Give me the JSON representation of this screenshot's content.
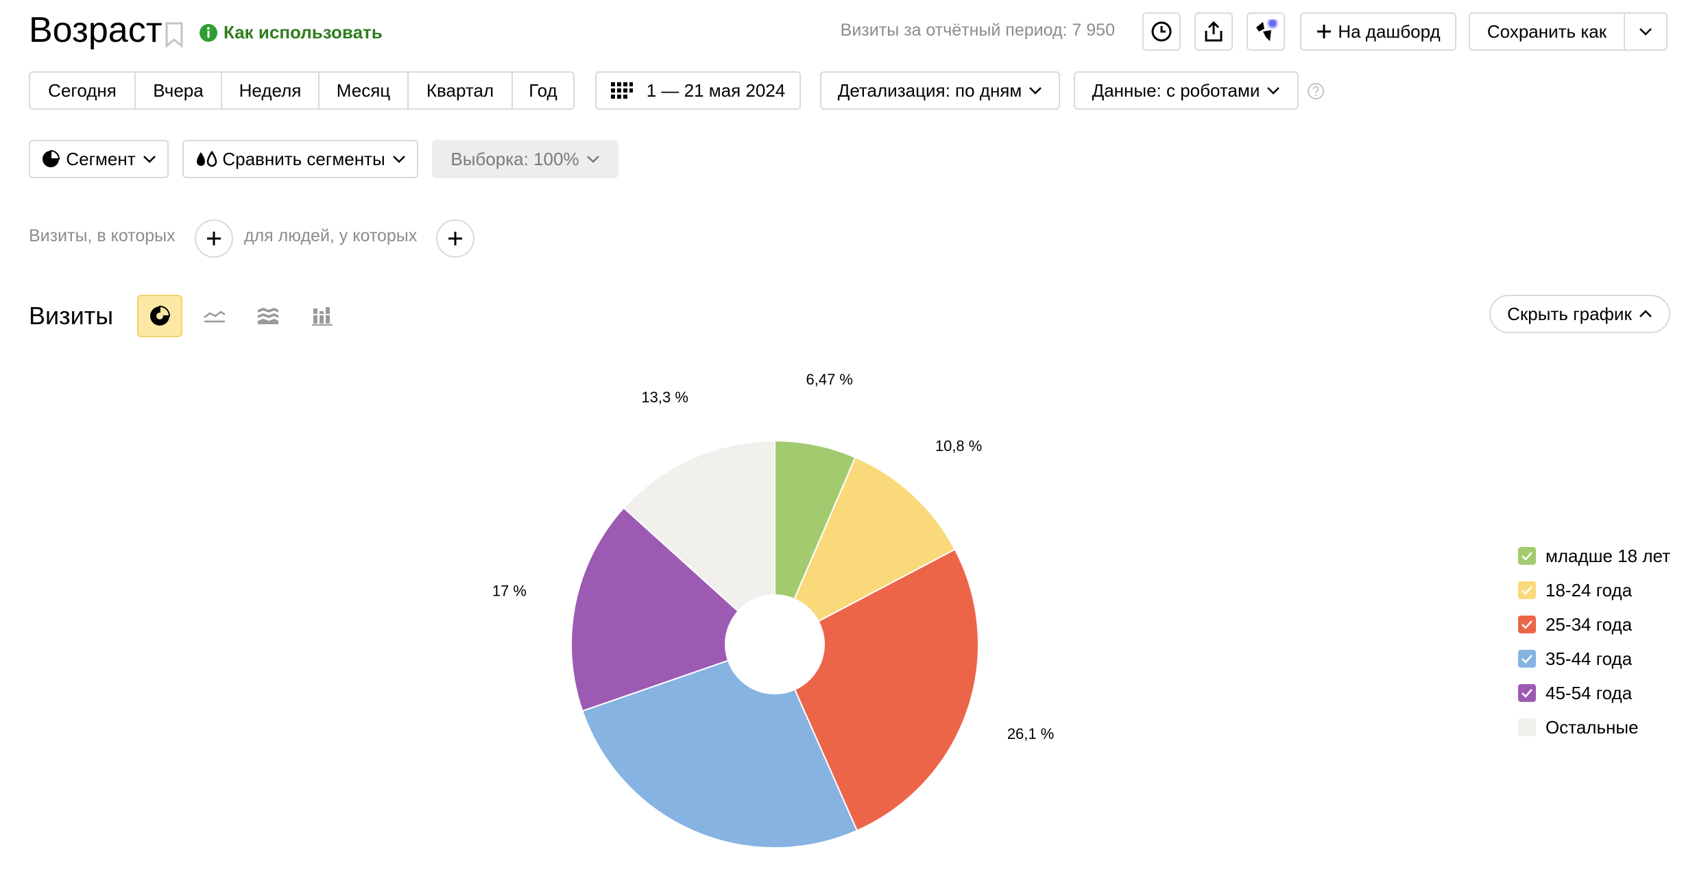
{
  "header": {
    "title": "Возраст",
    "howto_label": "Как использовать",
    "visits_total": "Визиты за отчётный период: 7 950",
    "dashboard_label": "На дашборд",
    "save_as_label": "Сохранить как"
  },
  "periods": [
    "Сегодня",
    "Вчера",
    "Неделя",
    "Месяц",
    "Квартал",
    "Год"
  ],
  "date_range": "1 — 21 мая 2024",
  "detail_label": "Детализация: по дням",
  "data_label": "Данные: с роботами",
  "segment_label": "Сегмент",
  "compare_label": "Сравнить сегменты",
  "sample_label": "Выборка: 100%",
  "filters": {
    "visits_where": "Визиты, в которых",
    "people_where": "для людей, у которых"
  },
  "chart_section": {
    "title": "Визиты",
    "hide_label": "Скрыть график"
  },
  "colors": {
    "accent_green": "#2f7d1f",
    "active_view_bg": "#fde9a5"
  },
  "chart_data": {
    "type": "pie",
    "title": "",
    "slices": [
      {
        "label": "младше 18 лет",
        "value": 6.47,
        "display": "6,47 %",
        "color": "#a2cb6f"
      },
      {
        "label": "18-24 года",
        "value": 10.8,
        "display": "10,8 %",
        "color": "#fad97a"
      },
      {
        "label": "25-34 года",
        "value": 26.1,
        "display": "26,1 %",
        "color": "#ec6549"
      },
      {
        "label": "35-44 года",
        "value": 26.3,
        "display": "26,3 %",
        "color": "#86b3e2"
      },
      {
        "label": "45-54 года",
        "value": 17,
        "display": "17 %",
        "color": "#9d5ab3"
      },
      {
        "label": "Остальные",
        "value": 13.3,
        "display": "13,3 %",
        "color": "#f1f0ed"
      }
    ],
    "legend_position": "right"
  }
}
